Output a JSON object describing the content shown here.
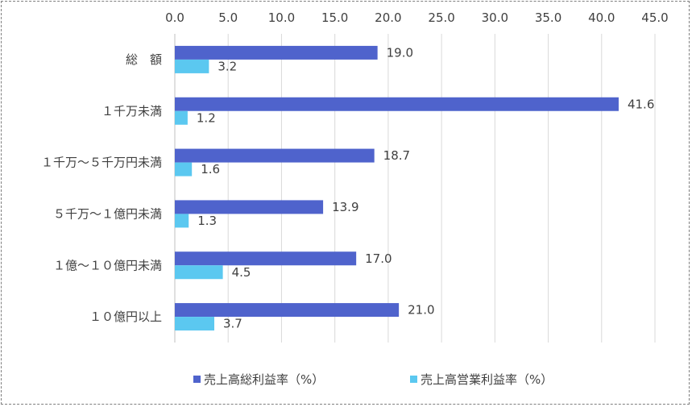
{
  "chart_data": {
    "type": "bar",
    "orientation": "horizontal",
    "categories": [
      "総　額",
      "１千万未満",
      "１千万～５千万円未満",
      "５千万～１億円未満",
      "１億～１０億円未満",
      "１０億円以上"
    ],
    "series": [
      {
        "name": "売上高総利益率（%）",
        "color": "#4F63CC",
        "values": [
          19.0,
          41.6,
          18.7,
          13.9,
          17.0,
          21.0
        ]
      },
      {
        "name": "売上高営業利益率（%）",
        "color": "#5BC8F0",
        "values": [
          3.2,
          1.2,
          1.6,
          1.3,
          4.5,
          3.7
        ]
      }
    ],
    "xlim": [
      0,
      45
    ],
    "xticks": [
      "0.0",
      "5.0",
      "10.0",
      "15.0",
      "20.0",
      "25.0",
      "30.0",
      "35.0",
      "40.0",
      "45.0"
    ],
    "x_axis_position": "top",
    "grid": true,
    "legend_position": "bottom",
    "title": "",
    "xlabel": "",
    "ylabel": ""
  }
}
